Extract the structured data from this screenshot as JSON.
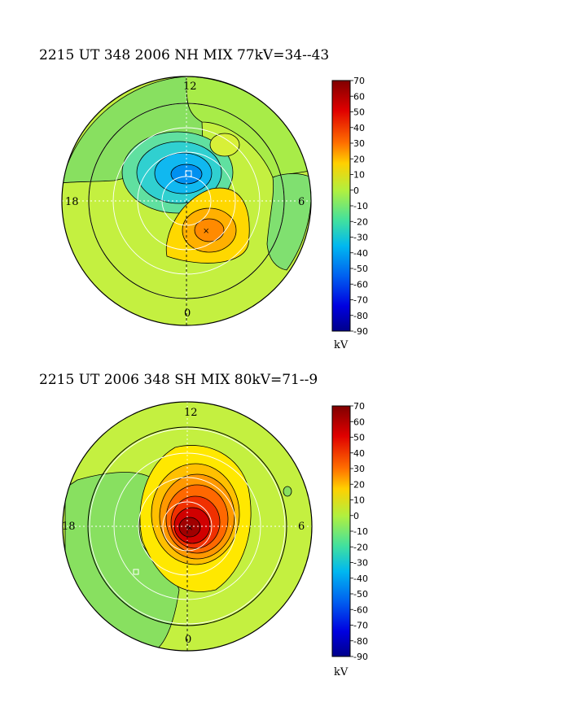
{
  "chart_data": [
    {
      "type": "heatmap",
      "title": "2215 UT 348 2006 NH MIX 77kV=34--43",
      "hemisphere": "NH",
      "clock_labels": {
        "top": "12",
        "left": "18",
        "right": "6",
        "bottom": "0"
      },
      "colorbar": {
        "unit": "kV",
        "min": -90,
        "max": 70,
        "ticks": [
          70,
          60,
          50,
          40,
          30,
          20,
          10,
          0,
          -10,
          -20,
          -30,
          -40,
          -50,
          -60,
          -70,
          -80,
          -90
        ]
      },
      "cross_polar_cap_potential_kV": 77,
      "max_potential_kV": 34,
      "min_potential_kV": -43
    },
    {
      "type": "heatmap",
      "title": "2215 UT 2006 348 SH MIX 80kV=71--9",
      "hemisphere": "SH",
      "clock_labels": {
        "top": "12",
        "left": "18",
        "right": "6",
        "bottom": "0"
      },
      "colorbar": {
        "unit": "kV",
        "min": -90,
        "max": 70,
        "ticks": [
          70,
          60,
          50,
          40,
          30,
          20,
          10,
          0,
          -10,
          -20,
          -30,
          -40,
          -50,
          -60,
          -70,
          -80,
          -90
        ]
      },
      "cross_polar_cap_potential_kV": 80,
      "max_potential_kV": 71,
      "min_potential_kV": -9
    }
  ]
}
